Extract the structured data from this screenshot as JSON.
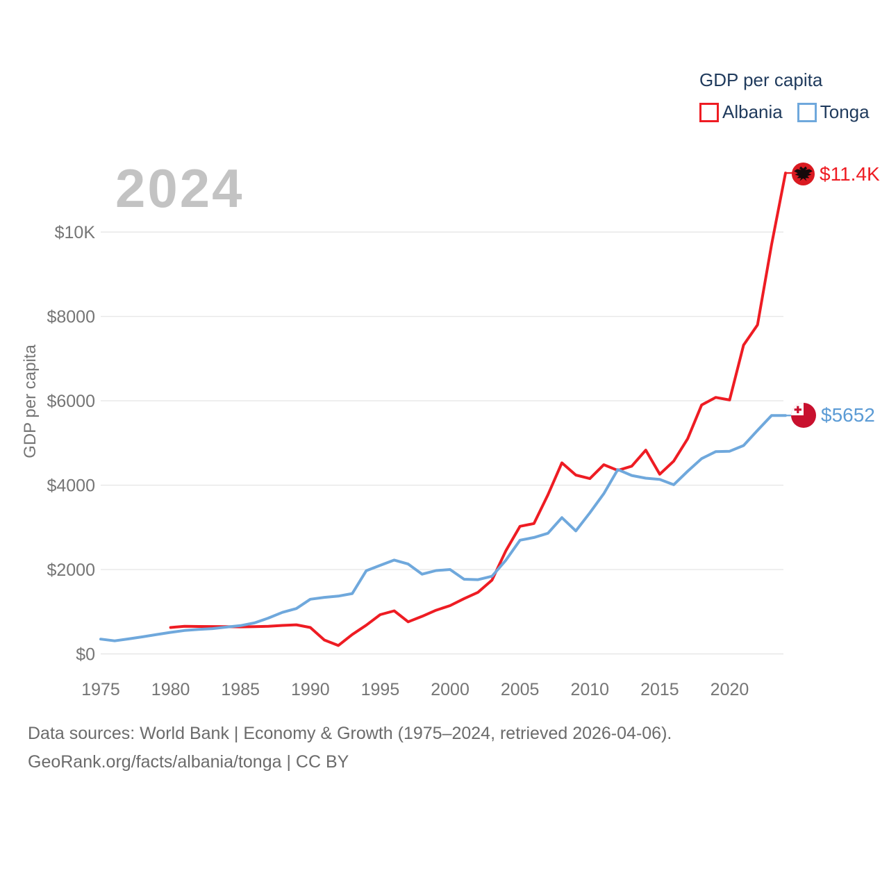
{
  "watermark": {
    "text": "2024"
  },
  "legend": {
    "title": "GDP per capita",
    "items": [
      {
        "id": "albania",
        "label": "Albania",
        "color": "#ee1c23"
      },
      {
        "id": "tonga",
        "label": "Tonga",
        "color": "#6fa8dc"
      }
    ]
  },
  "end_labels": {
    "albania": "$11.4K",
    "tonga": "$5652"
  },
  "footer": {
    "line1": "Data sources: World Bank | Economy & Growth (1975–2024, retrieved 2026-04-06).",
    "line2": "GeoRank.org/facts/albania/tonga | CC BY"
  },
  "colors": {
    "albania_line": "#ee1c23",
    "tonga_line": "#6fa8dc",
    "tonga_label_text": "#5b9bd5",
    "gridline": "#e7e7e7",
    "axis_text": "#757575",
    "legend_text": "#1f3a5c",
    "watermark_text": "#c3c3c3",
    "footer_text": "#6b6b6b"
  },
  "chart_data": {
    "type": "line",
    "title": "GDP per capita",
    "xlabel": "",
    "ylabel": "GDP per capita",
    "xlim": [
      1975,
      2024
    ],
    "ylim": [
      0,
      11600
    ],
    "grid": true,
    "legend_position": "top-right",
    "x_ticks": [
      1975,
      1980,
      1985,
      1990,
      1995,
      2000,
      2005,
      2010,
      2015,
      2020
    ],
    "y_ticks": [
      {
        "value": 0,
        "label": "$0"
      },
      {
        "value": 2000,
        "label": "$2000"
      },
      {
        "value": 4000,
        "label": "$4000"
      },
      {
        "value": 6000,
        "label": "$6000"
      },
      {
        "value": 8000,
        "label": "$8000"
      },
      {
        "value": 10000,
        "label": "$10K"
      }
    ],
    "series": [
      {
        "name": "Albania",
        "color": "#ee1c23",
        "end_label": "$11.4K",
        "points": [
          [
            1980,
            625
          ],
          [
            1981,
            655
          ],
          [
            1982,
            650
          ],
          [
            1983,
            648
          ],
          [
            1984,
            645
          ],
          [
            1985,
            640
          ],
          [
            1986,
            645
          ],
          [
            1987,
            655
          ],
          [
            1988,
            675
          ],
          [
            1989,
            690
          ],
          [
            1990,
            625
          ],
          [
            1991,
            330
          ],
          [
            1992,
            200
          ],
          [
            1993,
            460
          ],
          [
            1994,
            680
          ],
          [
            1995,
            930
          ],
          [
            1996,
            1020
          ],
          [
            1997,
            760
          ],
          [
            1998,
            890
          ],
          [
            1999,
            1035
          ],
          [
            2000,
            1145
          ],
          [
            2001,
            1310
          ],
          [
            2002,
            1460
          ],
          [
            2003,
            1750
          ],
          [
            2004,
            2450
          ],
          [
            2005,
            3025
          ],
          [
            2006,
            3090
          ],
          [
            2007,
            3770
          ],
          [
            2008,
            4530
          ],
          [
            2009,
            4240
          ],
          [
            2010,
            4155
          ],
          [
            2011,
            4485
          ],
          [
            2012,
            4350
          ],
          [
            2013,
            4450
          ],
          [
            2014,
            4830
          ],
          [
            2015,
            4260
          ],
          [
            2016,
            4570
          ],
          [
            2017,
            5100
          ],
          [
            2018,
            5900
          ],
          [
            2019,
            6080
          ],
          [
            2020,
            6020
          ],
          [
            2021,
            7320
          ],
          [
            2022,
            7800
          ],
          [
            2023,
            9700
          ],
          [
            2024,
            11400
          ]
        ]
      },
      {
        "name": "Tonga",
        "color": "#6fa8dc",
        "end_label": "$5652",
        "points": [
          [
            1975,
            350
          ],
          [
            1976,
            310
          ],
          [
            1977,
            355
          ],
          [
            1978,
            405
          ],
          [
            1979,
            460
          ],
          [
            1980,
            510
          ],
          [
            1981,
            555
          ],
          [
            1982,
            580
          ],
          [
            1983,
            600
          ],
          [
            1984,
            635
          ],
          [
            1985,
            670
          ],
          [
            1986,
            735
          ],
          [
            1987,
            850
          ],
          [
            1988,
            985
          ],
          [
            1989,
            1075
          ],
          [
            1990,
            1295
          ],
          [
            1991,
            1340
          ],
          [
            1992,
            1370
          ],
          [
            1993,
            1430
          ],
          [
            1994,
            1970
          ],
          [
            1995,
            2100
          ],
          [
            1996,
            2225
          ],
          [
            1997,
            2130
          ],
          [
            1998,
            1890
          ],
          [
            1999,
            1975
          ],
          [
            2000,
            2000
          ],
          [
            2001,
            1770
          ],
          [
            2002,
            1760
          ],
          [
            2003,
            1840
          ],
          [
            2004,
            2225
          ],
          [
            2005,
            2695
          ],
          [
            2006,
            2760
          ],
          [
            2007,
            2860
          ],
          [
            2008,
            3230
          ],
          [
            2009,
            2915
          ],
          [
            2010,
            3345
          ],
          [
            2011,
            3800
          ],
          [
            2012,
            4370
          ],
          [
            2013,
            4230
          ],
          [
            2014,
            4165
          ],
          [
            2015,
            4135
          ],
          [
            2016,
            4010
          ],
          [
            2017,
            4330
          ],
          [
            2018,
            4630
          ],
          [
            2019,
            4795
          ],
          [
            2020,
            4805
          ],
          [
            2021,
            4940
          ],
          [
            2022,
            5300
          ],
          [
            2023,
            5650
          ],
          [
            2024,
            5652
          ]
        ]
      }
    ]
  }
}
